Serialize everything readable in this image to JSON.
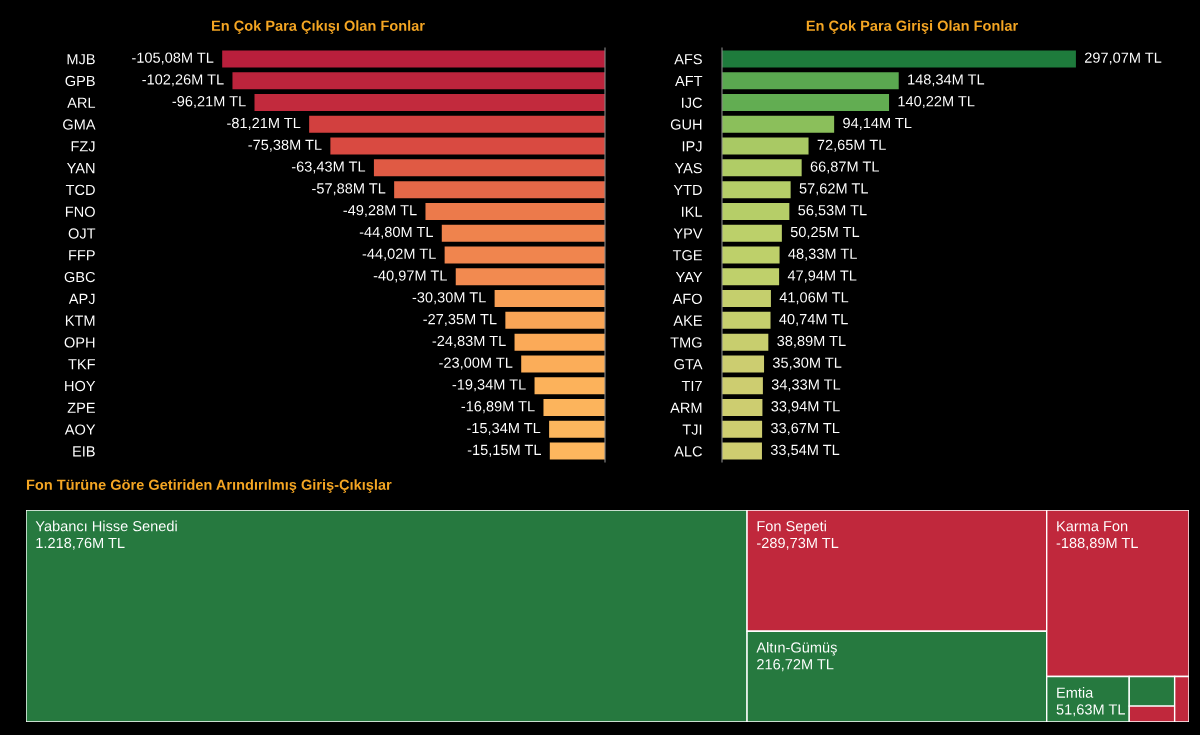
{
  "chart_data": [
    {
      "type": "bar",
      "orientation": "horizontal",
      "title": "En Çok Para Çıkışı Olan Fonlar",
      "categories": [
        "MJB",
        "GPB",
        "ARL",
        "GMA",
        "FZJ",
        "YAN",
        "TCD",
        "FNO",
        "OJT",
        "FFP",
        "GBC",
        "APJ",
        "KTM",
        "OPH",
        "TKF",
        "HOY",
        "ZPE",
        "AOY",
        "EIB"
      ],
      "values": [
        -105.08,
        -102.26,
        -96.21,
        -81.21,
        -75.38,
        -63.43,
        -57.88,
        -49.28,
        -44.8,
        -44.02,
        -40.97,
        -30.3,
        -27.35,
        -24.83,
        -23.0,
        -19.34,
        -16.89,
        -15.34,
        -15.15
      ],
      "value_labels": [
        "-105,08M TL",
        "-102,26M TL",
        "-96,21M TL",
        "-81,21M TL",
        "-75,38M TL",
        "-63,43M TL",
        "-57,88M TL",
        "-49,28M TL",
        "-44,80M TL",
        "-44,02M TL",
        "-40,97M TL",
        "-30,30M TL",
        "-27,35M TL",
        "-24,83M TL",
        "-23,00M TL",
        "-19,34M TL",
        "-16,89M TL",
        "-15,34M TL",
        "-15,15M TL"
      ],
      "colors": [
        "#b91f3c",
        "#bd243c",
        "#c22a3d",
        "#d2403f",
        "#d94a41",
        "#e05a44",
        "#e56848",
        "#ec7a4b",
        "#ef834d",
        "#f0854e",
        "#f28a50",
        "#f89f55",
        "#f9a556",
        "#fbaa58",
        "#fbad59",
        "#fcb25b",
        "#fcb45c",
        "#fcb65d",
        "#fdb75e"
      ]
    },
    {
      "type": "bar",
      "orientation": "horizontal",
      "title": "En Çok Para Girişi Olan Fonlar",
      "categories": [
        "AFS",
        "AFT",
        "IJC",
        "GUH",
        "IPJ",
        "YAS",
        "YTD",
        "IKL",
        "YPV",
        "TGE",
        "YAY",
        "AFO",
        "AKE",
        "TMG",
        "GTA",
        "TI7",
        "ARM",
        "TJI",
        "ALC"
      ],
      "values": [
        297.07,
        148.34,
        140.22,
        94.14,
        72.65,
        66.87,
        57.62,
        56.53,
        50.25,
        48.33,
        47.94,
        41.06,
        40.74,
        38.89,
        35.3,
        34.33,
        33.94,
        33.67,
        33.54
      ],
      "value_labels": [
        "297,07M TL",
        "148,34M TL",
        "140,22M TL",
        "94,14M TL",
        "72,65M TL",
        "66,87M TL",
        "57,62M TL",
        "56,53M TL",
        "50,25M TL",
        "48,33M TL",
        "47,94M TL",
        "41,06M TL",
        "40,74M TL",
        "38,89M TL",
        "35,30M TL",
        "34,33M TL",
        "33,94M TL",
        "33,67M TL",
        "33,54M TL"
      ],
      "colors": [
        "#1e7b3c",
        "#5aa850",
        "#62ad52",
        "#8bbf5b",
        "#a9c964",
        "#b0cc66",
        "#b5ce68",
        "#b6ce68",
        "#bcd06a",
        "#bed06a",
        "#bfd06b",
        "#c5cf6d",
        "#c6cf6d",
        "#c8ce6e",
        "#cccd70",
        "#cdcd70",
        "#cdcd70",
        "#cecd70",
        "#cecd70"
      ]
    },
    {
      "type": "other",
      "title": "Fon Türüne Göre Getiriden Arındırılmış Giriş-Çıkışlar",
      "categories": [
        "Yabancı Hisse Senedi",
        "Fon Sepeti",
        "Altın-Gümüş",
        "Karma Fon",
        "Emtia",
        null,
        null,
        null
      ],
      "values": [
        1218.76,
        -289.73,
        216.72,
        -188.89,
        51.63,
        null,
        null,
        null
      ],
      "value_labels": [
        "1.218,76M TL",
        "-289,73M TL",
        "216,72M TL",
        "-188,89M TL",
        "51,63M TL",
        null,
        null,
        null
      ],
      "colors": [
        "#26793f",
        "#c0283c",
        "#26793f",
        "#c0283c",
        "#26793f",
        "#26793f",
        "#c0283c",
        "#c0283c"
      ]
    }
  ]
}
